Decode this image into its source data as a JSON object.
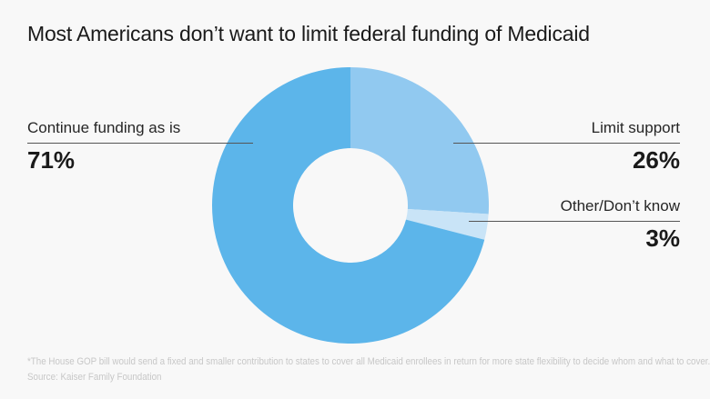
{
  "title": "Most Americans don’t want to limit federal funding of Medicaid",
  "chart_data": {
    "type": "pie",
    "donut": true,
    "title": "Most Americans don’t want to limit federal funding of Medicaid",
    "slices": [
      {
        "label": "Limit support",
        "value": 26,
        "display": "26%",
        "color": "#91C9F0"
      },
      {
        "label": "Other/Don’t know",
        "value": 3,
        "display": "3%",
        "color": "#C9E4F7"
      },
      {
        "label": "Continue funding as is",
        "value": 71,
        "display": "71%",
        "color": "#5CB5EA"
      }
    ],
    "start_angle_deg": -90,
    "direction": "clockwise",
    "legend_position": "callouts",
    "callout_line_color": "#555555",
    "background": "#f8f8f8"
  },
  "footnote": "*The House GOP bill would send a fixed and smaller contribution to states to cover all Medicaid enrollees in return for more state flexibility to decide whom and what to cover.",
  "source": "Source: Kaiser Family Foundation"
}
